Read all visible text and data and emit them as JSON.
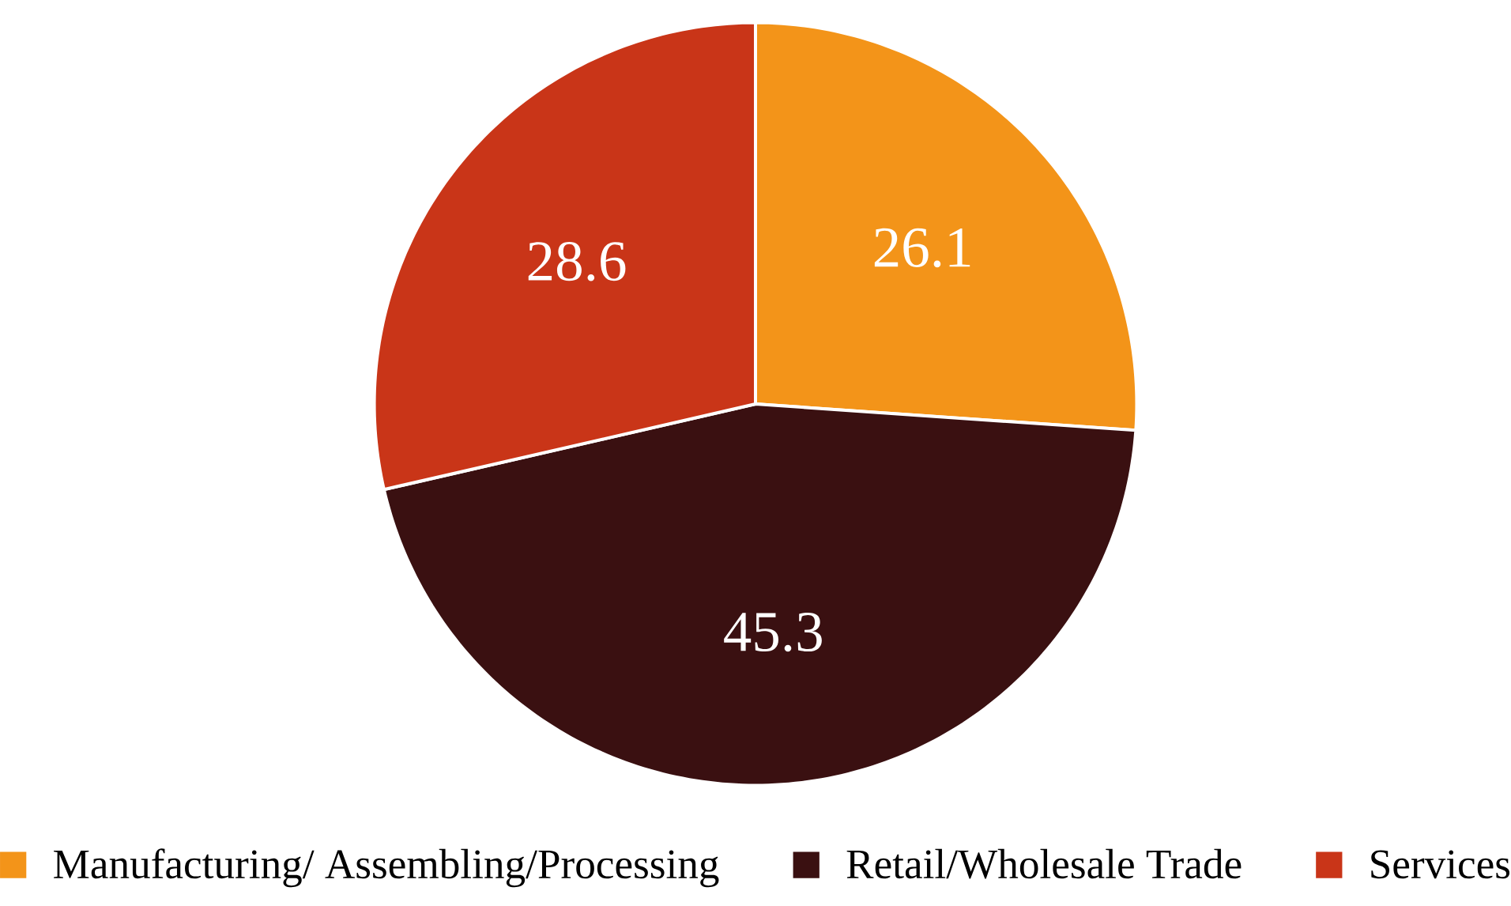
{
  "chart_data": {
    "type": "pie",
    "categories": [
      "Manufacturing/ Assembling/Processing",
      "Retail/Wholesale Trade",
      "Services"
    ],
    "values": [
      26.1,
      45.3,
      28.6
    ],
    "colors": [
      "#f39419",
      "#3a1011",
      "#c93518"
    ],
    "data_labels": true,
    "legend": "bottom"
  }
}
